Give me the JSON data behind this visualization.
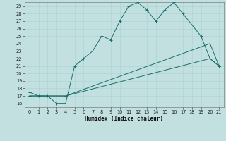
{
  "xlabel": "Humidex (Indice chaleur)",
  "bg_color": "#c2e0e0",
  "line_color": "#1a6e6a",
  "grid_color": "#aad0d0",
  "xlim": [
    -0.5,
    21.5
  ],
  "ylim": [
    15.5,
    29.5
  ],
  "xticks": [
    0,
    1,
    2,
    3,
    4,
    5,
    6,
    7,
    8,
    9,
    10,
    11,
    12,
    13,
    14,
    15,
    16,
    17,
    18,
    19,
    20,
    21
  ],
  "yticks": [
    16,
    17,
    18,
    19,
    20,
    21,
    22,
    23,
    24,
    25,
    26,
    27,
    28,
    29
  ],
  "line1_x": [
    0,
    1,
    2,
    3,
    4,
    5,
    6,
    7,
    8,
    9,
    10,
    11,
    12,
    13,
    14,
    15,
    16,
    17,
    19,
    20,
    21
  ],
  "line1_y": [
    17.5,
    17,
    17,
    16,
    16,
    21,
    22,
    23,
    25,
    24.5,
    27,
    29,
    29.5,
    28.5,
    27,
    28.5,
    29.5,
    28,
    25,
    22,
    21
  ],
  "line2_x": [
    0,
    4,
    20,
    21
  ],
  "line2_y": [
    17,
    17,
    24,
    21
  ],
  "line3_x": [
    0,
    4,
    20,
    21
  ],
  "line3_y": [
    17,
    17,
    22,
    21
  ],
  "xlabel_fontsize": 5.5,
  "tick_fontsize": 4.8,
  "lw": 0.7,
  "ms": 2.2
}
